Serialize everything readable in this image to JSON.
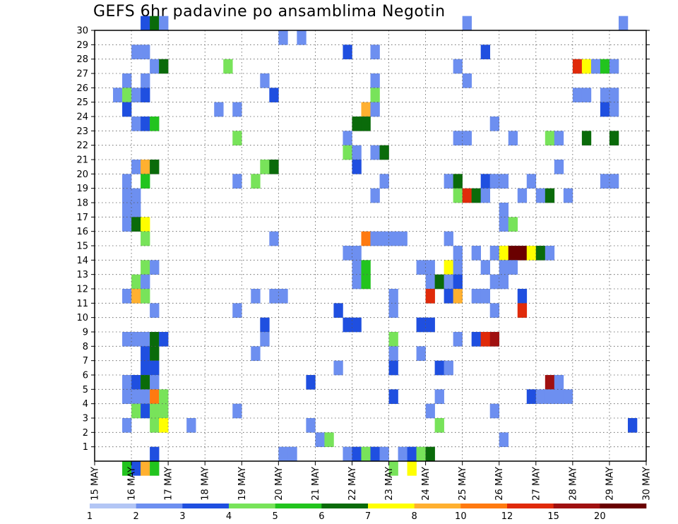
{
  "chart_data": {
    "type": "heatmap",
    "title": "GEFS 6hr padavine po ansamblima Negotin",
    "x_tick_labels": [
      "15 MAY",
      "16 MAY",
      "17 MAY",
      "18 MAY",
      "19 MAY",
      "20 MAY",
      "21 MAY",
      "22 MAY",
      "23 MAY",
      "24 MAY",
      "25 MAY",
      "26 MAY",
      "27 MAY",
      "28 MAY",
      "29 MAY",
      "30 MAY"
    ],
    "y_tick_labels": [
      "1",
      "2",
      "3",
      "4",
      "5",
      "6",
      "7",
      "8",
      "9",
      "10",
      "11",
      "12",
      "13",
      "14",
      "15",
      "16",
      "17",
      "18",
      "19",
      "20",
      "21",
      "22",
      "23",
      "24",
      "25",
      "26",
      "27",
      "28",
      "29",
      "30"
    ],
    "y_range": [
      0,
      30
    ],
    "x_steps_per_day": 4,
    "grid": true,
    "legend_position": "bottom",
    "colorbar": {
      "colors": [
        "#b3c6f5",
        "#6d8ff0",
        "#1f4fe0",
        "#78e35a",
        "#22c41e",
        "#0a6b0a",
        "#ffff00",
        "#ffb030",
        "#ff7a10",
        "#e02a0a",
        "#a01010",
        "#6a0000"
      ],
      "labels": [
        "1",
        "2",
        "3",
        "4",
        "5",
        "6",
        "7",
        "8",
        "10",
        "12",
        "15",
        "20"
      ]
    },
    "cells": [
      [
        5,
        30,
        2
      ],
      [
        6,
        30,
        5
      ],
      [
        7,
        30,
        1
      ],
      [
        40,
        30,
        1
      ],
      [
        57,
        30,
        1
      ],
      [
        20,
        29,
        1
      ],
      [
        22,
        29,
        1
      ],
      [
        4,
        28,
        1
      ],
      [
        5,
        28,
        1
      ],
      [
        27,
        28,
        2
      ],
      [
        30,
        28,
        1
      ],
      [
        42,
        28,
        2
      ],
      [
        6,
        27,
        1
      ],
      [
        7,
        27,
        5
      ],
      [
        14,
        27,
        3
      ],
      [
        39,
        27,
        1
      ],
      [
        52,
        27,
        9
      ],
      [
        53,
        27,
        6
      ],
      [
        54,
        27,
        1
      ],
      [
        55,
        27,
        4
      ],
      [
        56,
        27,
        1
      ],
      [
        3,
        26,
        1
      ],
      [
        5,
        26,
        1
      ],
      [
        18,
        26,
        1
      ],
      [
        30,
        26,
        1
      ],
      [
        40,
        26,
        1
      ],
      [
        2,
        25,
        1
      ],
      [
        3,
        25,
        3
      ],
      [
        4,
        25,
        1
      ],
      [
        5,
        25,
        2
      ],
      [
        19,
        25,
        2
      ],
      [
        30,
        25,
        3
      ],
      [
        52,
        25,
        1
      ],
      [
        53,
        25,
        1
      ],
      [
        55,
        25,
        1
      ],
      [
        56,
        25,
        1
      ],
      [
        3,
        24,
        2
      ],
      [
        13,
        24,
        1
      ],
      [
        15,
        24,
        1
      ],
      [
        29,
        24,
        7
      ],
      [
        30,
        24,
        1
      ],
      [
        55,
        24,
        2
      ],
      [
        56,
        24,
        1
      ],
      [
        4,
        23,
        1
      ],
      [
        5,
        23,
        2
      ],
      [
        6,
        23,
        4
      ],
      [
        28,
        23,
        5
      ],
      [
        29,
        23,
        5
      ],
      [
        43,
        23,
        1
      ],
      [
        15,
        22,
        3
      ],
      [
        27,
        22,
        1
      ],
      [
        39,
        22,
        1
      ],
      [
        40,
        22,
        1
      ],
      [
        45,
        22,
        1
      ],
      [
        49,
        22,
        3
      ],
      [
        50,
        22,
        1
      ],
      [
        53,
        22,
        5
      ],
      [
        56,
        22,
        5
      ],
      [
        27,
        21,
        3
      ],
      [
        28,
        21,
        1
      ],
      [
        30,
        21,
        1
      ],
      [
        31,
        21,
        5
      ],
      [
        4,
        20,
        1
      ],
      [
        5,
        20,
        7
      ],
      [
        6,
        20,
        5
      ],
      [
        18,
        20,
        3
      ],
      [
        19,
        20,
        5
      ],
      [
        28,
        20,
        2
      ],
      [
        50,
        20,
        1
      ],
      [
        3,
        19,
        1
      ],
      [
        5,
        19,
        4
      ],
      [
        15,
        19,
        1
      ],
      [
        17,
        19,
        3
      ],
      [
        31,
        19,
        1
      ],
      [
        38,
        19,
        1
      ],
      [
        39,
        19,
        5
      ],
      [
        42,
        19,
        2
      ],
      [
        43,
        19,
        1
      ],
      [
        44,
        19,
        1
      ],
      [
        47,
        19,
        1
      ],
      [
        55,
        19,
        1
      ],
      [
        56,
        19,
        1
      ],
      [
        3,
        18,
        1
      ],
      [
        4,
        18,
        1
      ],
      [
        30,
        18,
        1
      ],
      [
        39,
        18,
        3
      ],
      [
        40,
        18,
        9
      ],
      [
        41,
        18,
        5
      ],
      [
        42,
        18,
        1
      ],
      [
        46,
        18,
        1
      ],
      [
        48,
        18,
        1
      ],
      [
        49,
        18,
        5
      ],
      [
        51,
        18,
        1
      ],
      [
        3,
        17,
        1
      ],
      [
        4,
        17,
        1
      ],
      [
        44,
        17,
        1
      ],
      [
        3,
        16,
        1
      ],
      [
        4,
        16,
        5
      ],
      [
        5,
        16,
        6
      ],
      [
        44,
        16,
        1
      ],
      [
        45,
        16,
        3
      ],
      [
        5,
        15,
        3
      ],
      [
        19,
        15,
        1
      ],
      [
        29,
        15,
        8
      ],
      [
        30,
        15,
        1
      ],
      [
        31,
        15,
        1
      ],
      [
        32,
        15,
        1
      ],
      [
        33,
        15,
        1
      ],
      [
        38,
        15,
        1
      ],
      [
        27,
        14,
        1
      ],
      [
        28,
        14,
        1
      ],
      [
        39,
        14,
        1
      ],
      [
        41,
        14,
        1
      ],
      [
        43,
        14,
        1
      ],
      [
        44,
        14,
        6
      ],
      [
        45,
        14,
        11
      ],
      [
        46,
        14,
        11
      ],
      [
        47,
        14,
        6
      ],
      [
        48,
        14,
        5
      ],
      [
        49,
        14,
        1
      ],
      [
        5,
        13,
        3
      ],
      [
        6,
        13,
        1
      ],
      [
        28,
        13,
        1
      ],
      [
        29,
        13,
        4
      ],
      [
        35,
        13,
        1
      ],
      [
        36,
        13,
        1
      ],
      [
        38,
        13,
        6
      ],
      [
        39,
        13,
        1
      ],
      [
        42,
        13,
        1
      ],
      [
        44,
        13,
        1
      ],
      [
        45,
        13,
        1
      ],
      [
        4,
        12,
        3
      ],
      [
        5,
        12,
        1
      ],
      [
        28,
        12,
        1
      ],
      [
        29,
        12,
        4
      ],
      [
        36,
        12,
        1
      ],
      [
        37,
        12,
        5
      ],
      [
        38,
        12,
        1
      ],
      [
        39,
        12,
        2
      ],
      [
        43,
        12,
        1
      ],
      [
        44,
        12,
        1
      ],
      [
        3,
        11,
        1
      ],
      [
        4,
        11,
        7
      ],
      [
        5,
        11,
        3
      ],
      [
        17,
        11,
        1
      ],
      [
        19,
        11,
        1
      ],
      [
        20,
        11,
        1
      ],
      [
        32,
        11,
        1
      ],
      [
        36,
        11,
        9
      ],
      [
        38,
        11,
        2
      ],
      [
        39,
        11,
        7
      ],
      [
        41,
        11,
        1
      ],
      [
        42,
        11,
        1
      ],
      [
        46,
        11,
        2
      ],
      [
        6,
        10,
        1
      ],
      [
        15,
        10,
        1
      ],
      [
        26,
        10,
        2
      ],
      [
        32,
        10,
        1
      ],
      [
        43,
        10,
        1
      ],
      [
        46,
        10,
        9
      ],
      [
        18,
        9,
        2
      ],
      [
        27,
        9,
        2
      ],
      [
        28,
        9,
        2
      ],
      [
        35,
        9,
        2
      ],
      [
        36,
        9,
        2
      ],
      [
        3,
        8,
        1
      ],
      [
        4,
        8,
        1
      ],
      [
        5,
        8,
        1
      ],
      [
        6,
        8,
        5
      ],
      [
        7,
        8,
        2
      ],
      [
        18,
        8,
        1
      ],
      [
        32,
        8,
        3
      ],
      [
        39,
        8,
        1
      ],
      [
        41,
        8,
        2
      ],
      [
        42,
        8,
        9
      ],
      [
        43,
        8,
        10
      ],
      [
        5,
        7,
        2
      ],
      [
        6,
        7,
        5
      ],
      [
        17,
        7,
        1
      ],
      [
        32,
        7,
        1
      ],
      [
        35,
        7,
        1
      ],
      [
        5,
        6,
        2
      ],
      [
        6,
        6,
        2
      ],
      [
        26,
        6,
        1
      ],
      [
        32,
        6,
        2
      ],
      [
        37,
        6,
        2
      ],
      [
        38,
        6,
        1
      ],
      [
        3,
        5,
        1
      ],
      [
        4,
        5,
        2
      ],
      [
        5,
        5,
        5
      ],
      [
        6,
        5,
        1
      ],
      [
        23,
        5,
        2
      ],
      [
        49,
        5,
        10
      ],
      [
        50,
        5,
        1
      ],
      [
        3,
        4,
        1
      ],
      [
        4,
        4,
        1
      ],
      [
        5,
        4,
        1
      ],
      [
        6,
        4,
        8
      ],
      [
        7,
        4,
        3
      ],
      [
        32,
        4,
        2
      ],
      [
        37,
        4,
        1
      ],
      [
        47,
        4,
        2
      ],
      [
        48,
        4,
        1
      ],
      [
        49,
        4,
        1
      ],
      [
        50,
        4,
        1
      ],
      [
        51,
        4,
        1
      ],
      [
        4,
        3,
        3
      ],
      [
        5,
        3,
        2
      ],
      [
        6,
        3,
        3
      ],
      [
        7,
        3,
        3
      ],
      [
        15,
        3,
        1
      ],
      [
        36,
        3,
        1
      ],
      [
        43,
        3,
        1
      ],
      [
        3,
        2,
        1
      ],
      [
        6,
        2,
        3
      ],
      [
        7,
        2,
        6
      ],
      [
        10,
        2,
        1
      ],
      [
        23,
        2,
        1
      ],
      [
        37,
        2,
        3
      ],
      [
        58,
        2,
        2
      ],
      [
        24,
        1,
        1
      ],
      [
        25,
        1,
        3
      ],
      [
        44,
        1,
        1
      ],
      [
        6,
        0,
        2
      ],
      [
        20,
        0,
        1
      ],
      [
        21,
        0,
        1
      ],
      [
        27,
        0,
        1
      ],
      [
        28,
        0,
        2
      ],
      [
        29,
        0,
        3
      ],
      [
        30,
        0,
        2
      ],
      [
        31,
        0,
        1
      ],
      [
        33,
        0,
        1
      ],
      [
        34,
        0,
        2
      ],
      [
        35,
        0,
        3
      ],
      [
        36,
        0,
        5
      ],
      [
        3,
        -1,
        4
      ],
      [
        4,
        -1,
        2
      ],
      [
        5,
        -1,
        7
      ],
      [
        6,
        -1,
        4
      ],
      [
        32,
        -1,
        3
      ],
      [
        34,
        -1,
        6
      ]
    ]
  }
}
